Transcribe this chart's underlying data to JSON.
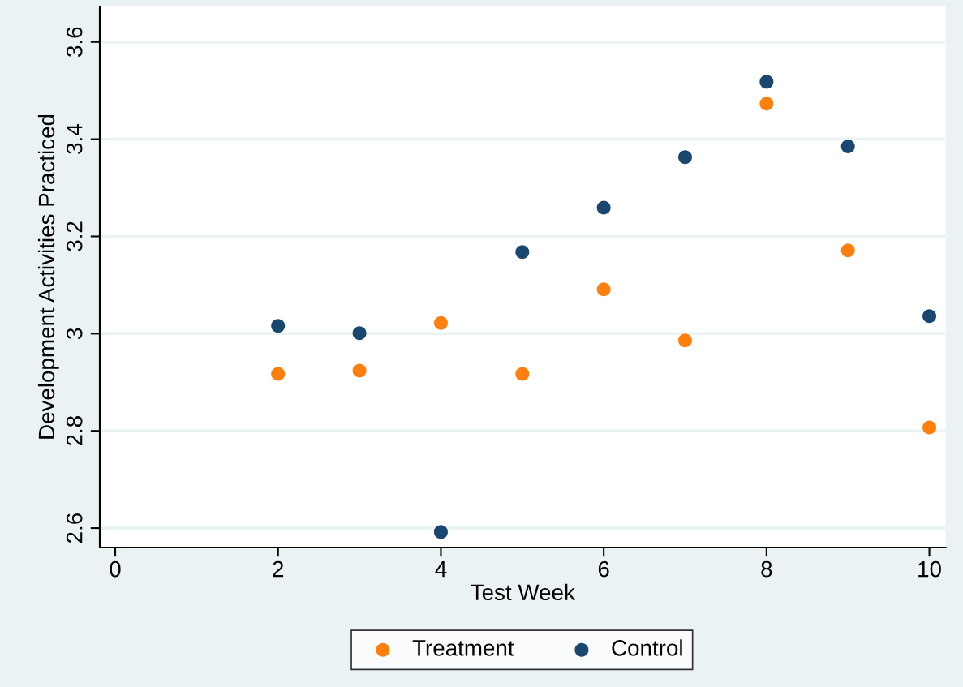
{
  "chart_data": {
    "type": "scatter",
    "xlabel": "Test Week",
    "ylabel": "Development Activities Practiced",
    "x": [
      2,
      3,
      4,
      5,
      6,
      7,
      8,
      9,
      10
    ],
    "series": [
      {
        "name": "Treatment",
        "color": "#ff7f0e",
        "values": [
          2.917,
          2.924,
          3.022,
          2.917,
          3.091,
          2.986,
          3.473,
          3.171,
          2.807
        ]
      },
      {
        "name": "Control",
        "color": "#1a476f",
        "values": [
          3.016,
          3.001,
          2.592,
          3.168,
          3.259,
          3.363,
          3.518,
          3.385,
          3.036
        ]
      }
    ],
    "xlim": [
      -0.19,
      10.2
    ],
    "ylim": [
      2.56,
      3.673
    ],
    "xticks": [
      0,
      2,
      4,
      6,
      8,
      10
    ],
    "yticks": [
      2.6,
      2.8,
      3,
      3.2,
      3.4,
      3.6
    ],
    "grid": "y",
    "legend": "bottom",
    "marker": "circle"
  }
}
